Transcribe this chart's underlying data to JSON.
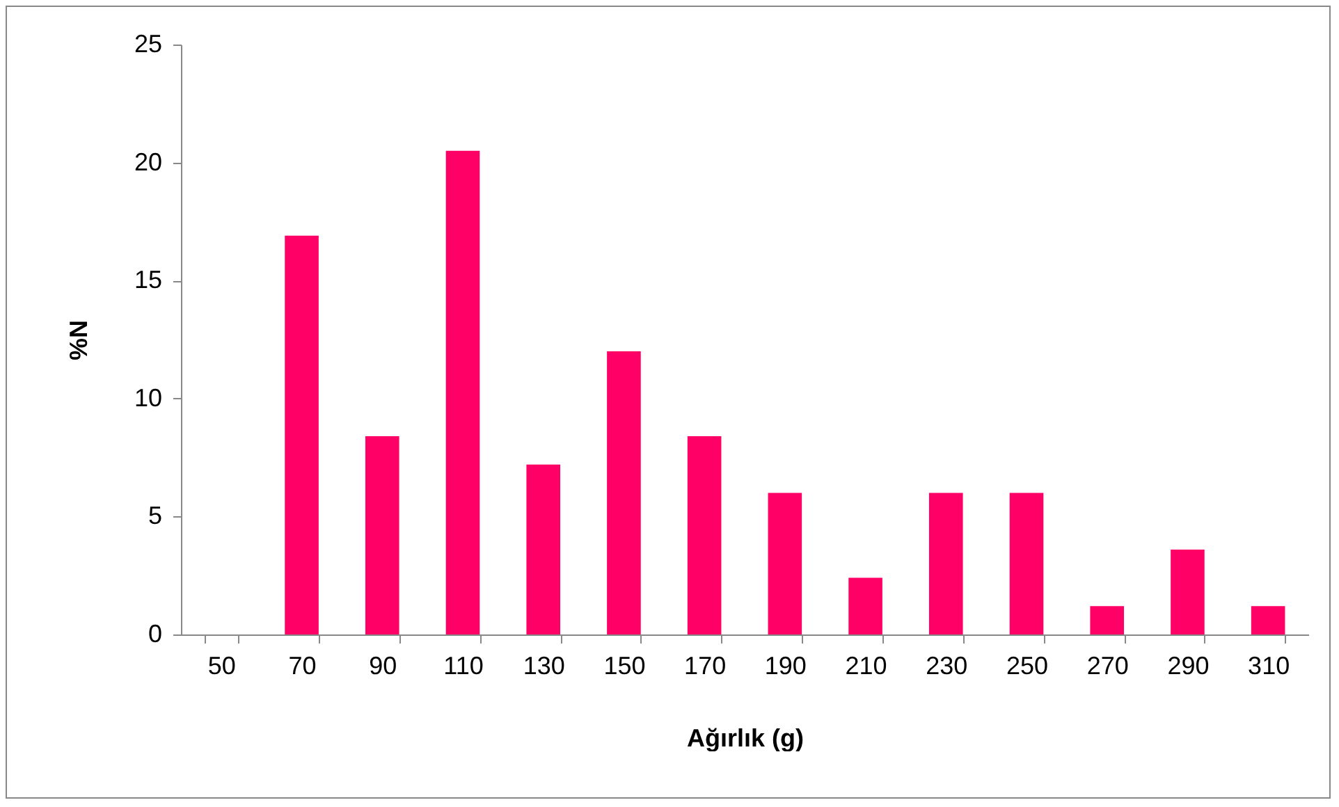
{
  "chart_data": {
    "type": "bar",
    "xlabel": "Ağırlık (g)",
    "ylabel": "%N",
    "categories": [
      "50",
      "70",
      "90",
      "110",
      "130",
      "150",
      "170",
      "190",
      "210",
      "230",
      "250",
      "270",
      "290",
      "310"
    ],
    "values": [
      0,
      16.9,
      8.4,
      20.5,
      7.2,
      12.0,
      8.4,
      6.0,
      2.4,
      6.0,
      6.0,
      1.2,
      3.6,
      1.2
    ],
    "color": "#ff0066",
    "ylim": [
      0,
      25
    ],
    "yticks": [
      0,
      5,
      10,
      15,
      20,
      25
    ],
    "grid": false
  }
}
